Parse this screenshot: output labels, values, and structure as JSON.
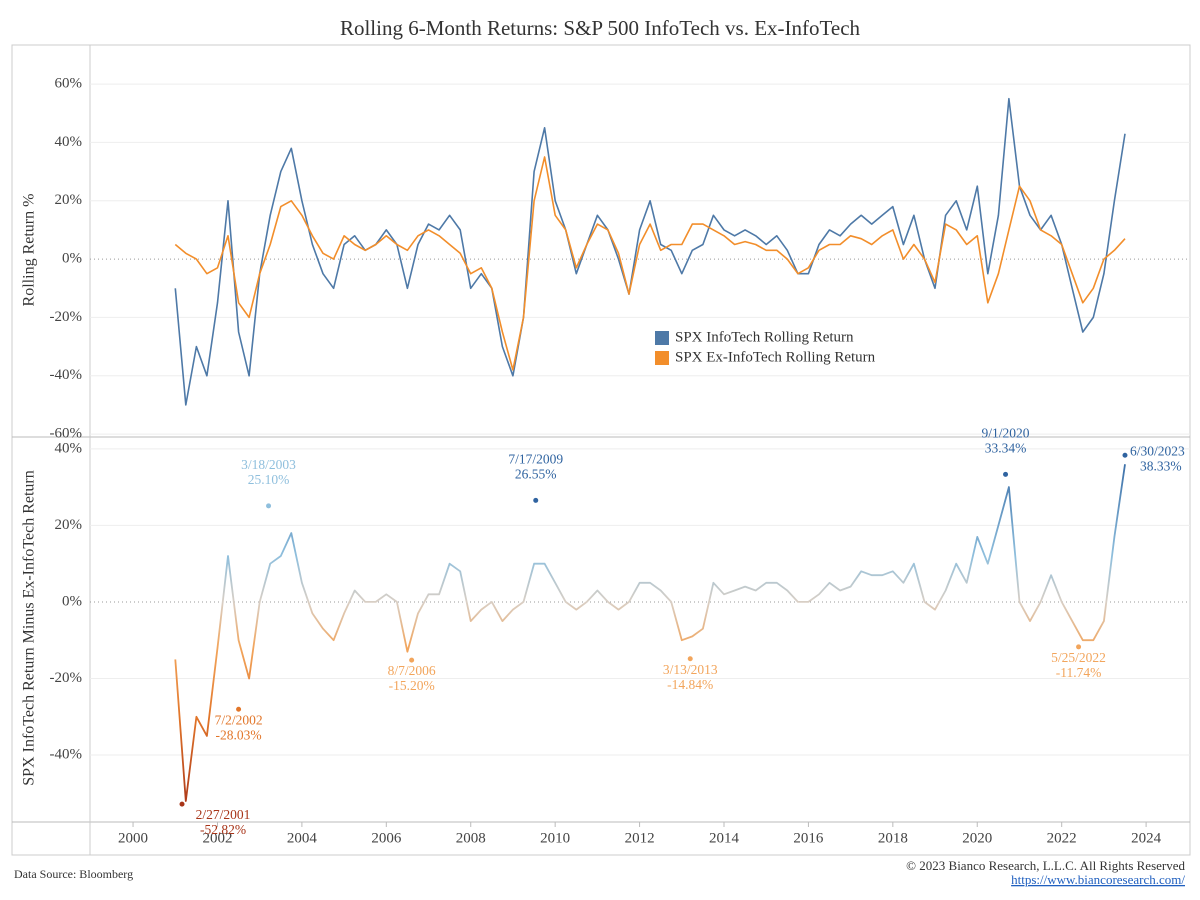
{
  "chart_data": [
    {
      "type": "line",
      "title": "Rolling 6-Month Returns: S&P 500 InfoTech vs. Ex-InfoTech",
      "ylabel": "Rolling Return %",
      "x": [
        2001,
        2001.25,
        2001.5,
        2001.75,
        2002,
        2002.25,
        2002.5,
        2002.75,
        2003,
        2003.25,
        2003.5,
        2003.75,
        2004,
        2004.25,
        2004.5,
        2004.75,
        2005,
        2005.25,
        2005.5,
        2005.75,
        2006,
        2006.25,
        2006.5,
        2006.75,
        2007,
        2007.25,
        2007.5,
        2007.75,
        2008,
        2008.25,
        2008.5,
        2008.75,
        2009,
        2009.25,
        2009.5,
        2009.75,
        2010,
        2010.25,
        2010.5,
        2010.75,
        2011,
        2011.25,
        2011.5,
        2011.75,
        2012,
        2012.25,
        2012.5,
        2012.75,
        2013,
        2013.25,
        2013.5,
        2013.75,
        2014,
        2014.25,
        2014.5,
        2014.75,
        2015,
        2015.25,
        2015.5,
        2015.75,
        2016,
        2016.25,
        2016.5,
        2016.75,
        2017,
        2017.25,
        2017.5,
        2017.75,
        2018,
        2018.25,
        2018.5,
        2018.75,
        2019,
        2019.25,
        2019.5,
        2019.75,
        2020,
        2020.25,
        2020.5,
        2020.75,
        2021,
        2021.25,
        2021.5,
        2021.75,
        2022,
        2022.25,
        2022.5,
        2022.75,
        2023,
        2023.25,
        2023.5
      ],
      "series": [
        {
          "name": "SPX InfoTech Rolling Return",
          "color": "#4e79a7",
          "values": [
            -10,
            -50,
            -30,
            -40,
            -15,
            20,
            -25,
            -40,
            -5,
            15,
            30,
            38,
            20,
            5,
            -5,
            -10,
            5,
            8,
            3,
            5,
            10,
            5,
            -10,
            5,
            12,
            10,
            15,
            10,
            -10,
            -5,
            -10,
            -30,
            -40,
            -20,
            30,
            45,
            20,
            10,
            -5,
            5,
            15,
            10,
            0,
            -12,
            10,
            20,
            5,
            3,
            -5,
            3,
            5,
            15,
            10,
            8,
            10,
            8,
            5,
            8,
            3,
            -5,
            -5,
            5,
            10,
            8,
            12,
            15,
            12,
            15,
            18,
            5,
            15,
            0,
            -10,
            15,
            20,
            10,
            25,
            -5,
            15,
            55,
            25,
            15,
            10,
            15,
            5,
            -10,
            -25,
            -20,
            -5,
            20,
            43
          ]
        },
        {
          "name": "SPX Ex-InfoTech Rolling Return",
          "color": "#f28e2b",
          "values": [
            5,
            2,
            0,
            -5,
            -3,
            8,
            -15,
            -20,
            -5,
            5,
            18,
            20,
            15,
            8,
            2,
            0,
            8,
            5,
            3,
            5,
            8,
            5,
            3,
            8,
            10,
            8,
            5,
            2,
            -5,
            -3,
            -10,
            -25,
            -38,
            -20,
            20,
            35,
            15,
            10,
            -3,
            5,
            12,
            10,
            2,
            -12,
            5,
            12,
            3,
            5,
            5,
            12,
            12,
            10,
            8,
            5,
            6,
            5,
            3,
            3,
            0,
            -5,
            -3,
            3,
            5,
            5,
            8,
            7,
            5,
            8,
            10,
            0,
            5,
            0,
            -8,
            12,
            10,
            5,
            8,
            -15,
            -5,
            10,
            25,
            20,
            10,
            8,
            5,
            -5,
            -15,
            -10,
            0,
            3,
            7
          ]
        }
      ],
      "xlim": [
        1998.98,
        2025.04
      ],
      "ylim": [
        -61,
        73.4
      ],
      "yticks": [
        {
          "value": -60,
          "label": "-60%"
        },
        {
          "value": -40,
          "label": "-40%"
        },
        {
          "value": -20,
          "label": "-20%"
        },
        {
          "value": 0,
          "label": "0%"
        },
        {
          "value": 20,
          "label": "20%"
        },
        {
          "value": 40,
          "label": "40%"
        },
        {
          "value": 60,
          "label": "60%"
        }
      ],
      "grid": true,
      "legend": "center"
    },
    {
      "type": "line",
      "ylabel": "SPX InfoTech Return Minus Ex-InfoTech Return",
      "x": [
        2001,
        2001.25,
        2001.5,
        2001.75,
        2002,
        2002.25,
        2002.5,
        2002.75,
        2003,
        2003.25,
        2003.5,
        2003.75,
        2004,
        2004.25,
        2004.5,
        2004.75,
        2005,
        2005.25,
        2005.5,
        2005.75,
        2006,
        2006.25,
        2006.5,
        2006.75,
        2007,
        2007.25,
        2007.5,
        2007.75,
        2008,
        2008.25,
        2008.5,
        2008.75,
        2009,
        2009.25,
        2009.5,
        2009.75,
        2010,
        2010.25,
        2010.5,
        2010.75,
        2011,
        2011.25,
        2011.5,
        2011.75,
        2012,
        2012.25,
        2012.5,
        2012.75,
        2013,
        2013.25,
        2013.5,
        2013.75,
        2014,
        2014.25,
        2014.5,
        2014.75,
        2015,
        2015.25,
        2015.5,
        2015.75,
        2016,
        2016.25,
        2016.5,
        2016.75,
        2017,
        2017.25,
        2017.5,
        2017.75,
        2018,
        2018.25,
        2018.5,
        2018.75,
        2019,
        2019.25,
        2019.5,
        2019.75,
        2020,
        2020.25,
        2020.5,
        2020.75,
        2021,
        2021.25,
        2021.5,
        2021.75,
        2022,
        2022.25,
        2022.5,
        2022.75,
        2023,
        2023.25,
        2023.5
      ],
      "values": [
        -15,
        -52,
        -30,
        -35,
        -12,
        12,
        -10,
        -20,
        0,
        10,
        12,
        18,
        5,
        -3,
        -7,
        -10,
        -3,
        3,
        0,
        0,
        2,
        0,
        -13,
        -3,
        2,
        2,
        10,
        8,
        -5,
        -2,
        0,
        -5,
        -2,
        0,
        10,
        10,
        5,
        0,
        -2,
        0,
        3,
        0,
        -2,
        0,
        5,
        5,
        3,
        0,
        -10,
        -9,
        -7,
        5,
        2,
        3,
        4,
        3,
        5,
        5,
        3,
        0,
        0,
        2,
        5,
        3,
        4,
        8,
        7,
        7,
        8,
        5,
        10,
        0,
        -2,
        3,
        10,
        5,
        17,
        10,
        20,
        30,
        0,
        -5,
        0,
        7,
        0,
        -5,
        -10,
        -10,
        -5,
        17,
        36
      ],
      "color_stops": [
        {
          "value": 40,
          "color": "#2f63a0"
        },
        {
          "value": 12,
          "color": "#8fbfdd"
        },
        {
          "value": 0,
          "color": "#d9cfc5"
        },
        {
          "value": -12,
          "color": "#f2a55c"
        },
        {
          "value": -30,
          "color": "#e2762a"
        },
        {
          "value": -55,
          "color": "#a83418"
        }
      ],
      "annotations": [
        {
          "date": "2/27/2001",
          "x": 2001.16,
          "value": -52.82,
          "value_label": "-52.82%"
        },
        {
          "date": "7/2/2002",
          "x": 2002.5,
          "value": -28.03,
          "value_label": "-28.03%"
        },
        {
          "date": "3/18/2003",
          "x": 2003.21,
          "value": 25.1,
          "value_label": "25.10%"
        },
        {
          "date": "8/7/2006",
          "x": 2006.6,
          "value": -15.2,
          "value_label": "-15.20%"
        },
        {
          "date": "7/17/2009",
          "x": 2009.54,
          "value": 26.55,
          "value_label": "26.55%"
        },
        {
          "date": "3/13/2013",
          "x": 2013.2,
          "value": -14.84,
          "value_label": "-14.84%"
        },
        {
          "date": "9/1/2020",
          "x": 2020.67,
          "value": 33.34,
          "value_label": "33.34%"
        },
        {
          "date": "5/25/2022",
          "x": 2022.4,
          "value": -11.74,
          "value_label": "-11.74%"
        },
        {
          "date": "6/30/2023",
          "x": 2023.5,
          "value": 38.33,
          "value_label": "38.33%"
        }
      ],
      "xlim": [
        1998.98,
        2025.04
      ],
      "ylim": [
        -57.5,
        43.1
      ],
      "xticks": [
        2000,
        2002,
        2004,
        2006,
        2008,
        2010,
        2012,
        2014,
        2016,
        2018,
        2020,
        2022,
        2024
      ],
      "yticks": [
        {
          "value": -40,
          "label": "-40%"
        },
        {
          "value": -20,
          "label": "-20%"
        },
        {
          "value": 0,
          "label": "0%"
        },
        {
          "value": 20,
          "label": "20%"
        },
        {
          "value": 40,
          "label": "40%"
        }
      ],
      "grid": true
    }
  ],
  "footer": {
    "source": "Data Source: Bloomberg",
    "copyright": "© 2023 Bianco Research, L.L.C. All Rights Reserved",
    "url": "https://www.biancoresearch.com/"
  }
}
